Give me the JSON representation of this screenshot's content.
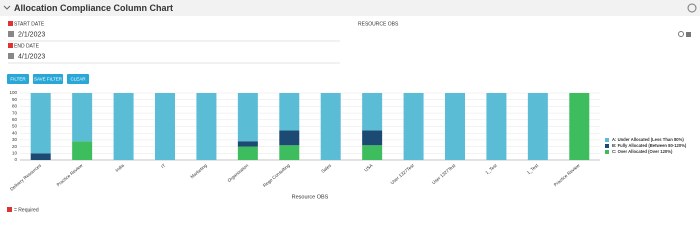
{
  "header": {
    "title": "Allocation Compliance Column Chart"
  },
  "filters": {
    "start_date_label": "START DATE",
    "start_date": "2/1/2023",
    "end_date_label": "END DATE",
    "end_date": "4/1/2023",
    "resource_obs_label": "RESOURCE OBS"
  },
  "buttons": [
    "FILTER",
    "SAVE FILTER",
    "CLEAR"
  ],
  "chart_data": {
    "type": "stacked_bar",
    "x_label": "Resource OBS",
    "categories": [
      "Delivery Resources",
      "Practice Review",
      "India",
      "IT",
      "Marketing",
      "Organization",
      "Rego Consulting",
      "Sales",
      "USA",
      "User 1327Test",
      "User 1327Test",
      "1_Test",
      "1_Test",
      "Practice Review"
    ],
    "series": [
      {
        "name": "A: Under Allocated (Less Than 80%)",
        "color": "#5bbcd6",
        "values": [
          90,
          72,
          100,
          100,
          100,
          72,
          56,
          100,
          56,
          100,
          100,
          100,
          100,
          0
        ]
      },
      {
        "name": "B: Fully Allocated (Between 80-120%)",
        "color": "#1d4a73",
        "values": [
          10,
          0,
          0,
          0,
          0,
          8,
          22,
          0,
          22,
          0,
          0,
          0,
          0,
          0
        ]
      },
      {
        "name": "C: Over Allocated (Over 120%)",
        "color": "#3dbd5d",
        "values": [
          0,
          28,
          0,
          0,
          0,
          20,
          22,
          0,
          22,
          0,
          0,
          0,
          0,
          100
        ]
      }
    ],
    "stack_order": [
      2,
      1,
      0
    ],
    "ylim": [
      0,
      100
    ],
    "yticks": [
      0,
      10,
      20,
      30,
      40,
      50,
      60,
      70,
      80,
      90,
      100
    ],
    "grid": true
  },
  "footer": {
    "required_note": "= Required"
  }
}
